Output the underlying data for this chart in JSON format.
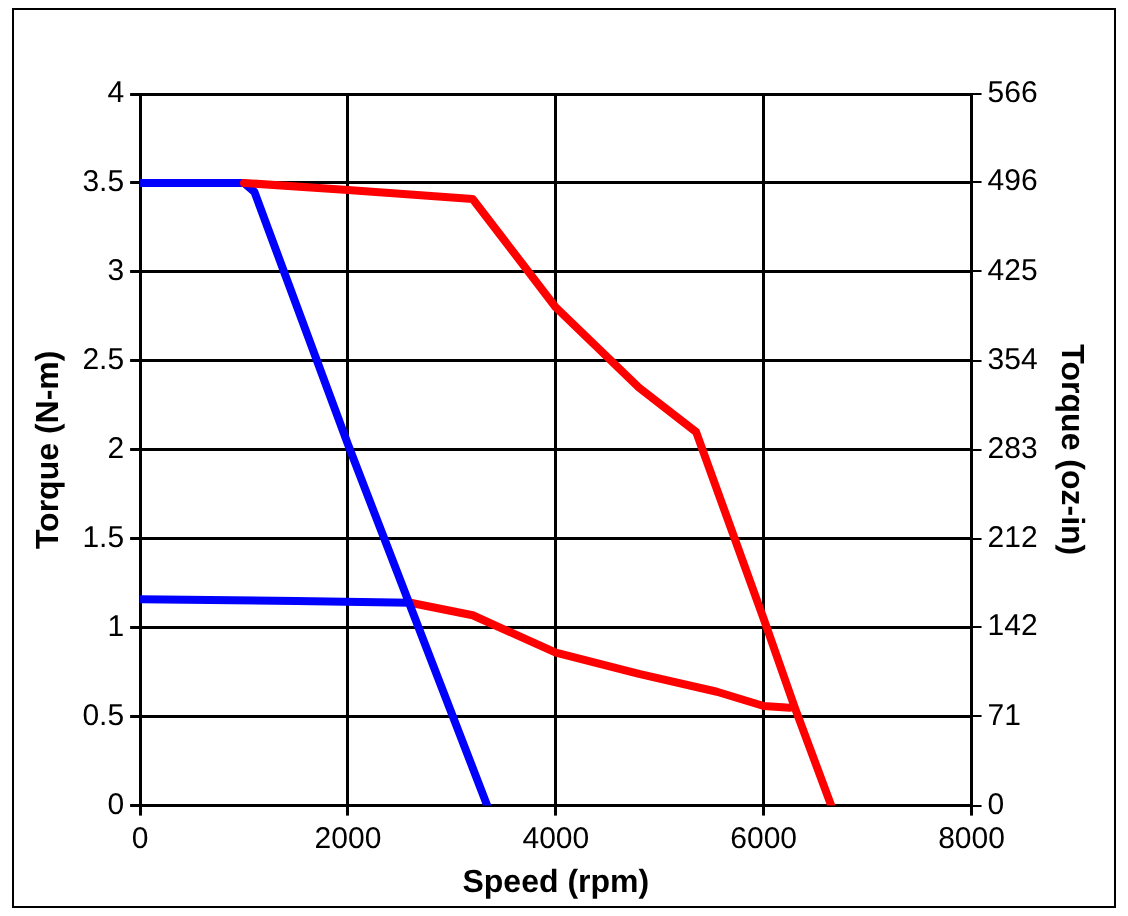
{
  "chart_data": {
    "type": "line",
    "xlabel": "Speed (rpm)",
    "ylabel": "Torque (N-m)",
    "y2label": "Torque (oz-in)",
    "xlim": [
      0,
      8000
    ],
    "xticks": [
      0,
      2000,
      4000,
      6000,
      8000
    ],
    "ylim": [
      0,
      4
    ],
    "yticks": [
      0,
      0.5,
      1,
      1.5,
      2,
      2.5,
      3,
      3.5,
      4
    ],
    "y2lim": [
      0,
      566
    ],
    "y2ticks": [
      0,
      71,
      142,
      212,
      283,
      354,
      425,
      496,
      566
    ],
    "grid": true,
    "legend": false,
    "marker": "none",
    "line_style": "solid",
    "series": [
      {
        "color": "#ff0000",
        "x": [
          1000,
          2000,
          3200,
          4000,
          4800,
          5350,
          6000,
          6300,
          6650
        ],
        "values": [
          3.5,
          3.46,
          3.41,
          2.8,
          2.35,
          2.1,
          1.05,
          0.55,
          0
        ]
      },
      {
        "color": "#0000ff",
        "x": [
          0,
          1000,
          1100,
          2000,
          3340
        ],
        "values": [
          3.5,
          3.5,
          3.45,
          2.03,
          0
        ]
      },
      {
        "color": "#ff0000",
        "x": [
          2600,
          3200,
          4000,
          4800,
          5550,
          6000,
          6250
        ],
        "values": [
          1.14,
          1.07,
          0.86,
          0.74,
          0.64,
          0.56,
          0.55
        ]
      },
      {
        "color": "#0000ff",
        "x": [
          0,
          1500,
          2600
        ],
        "values": [
          1.16,
          1.15,
          1.14
        ]
      }
    ]
  }
}
